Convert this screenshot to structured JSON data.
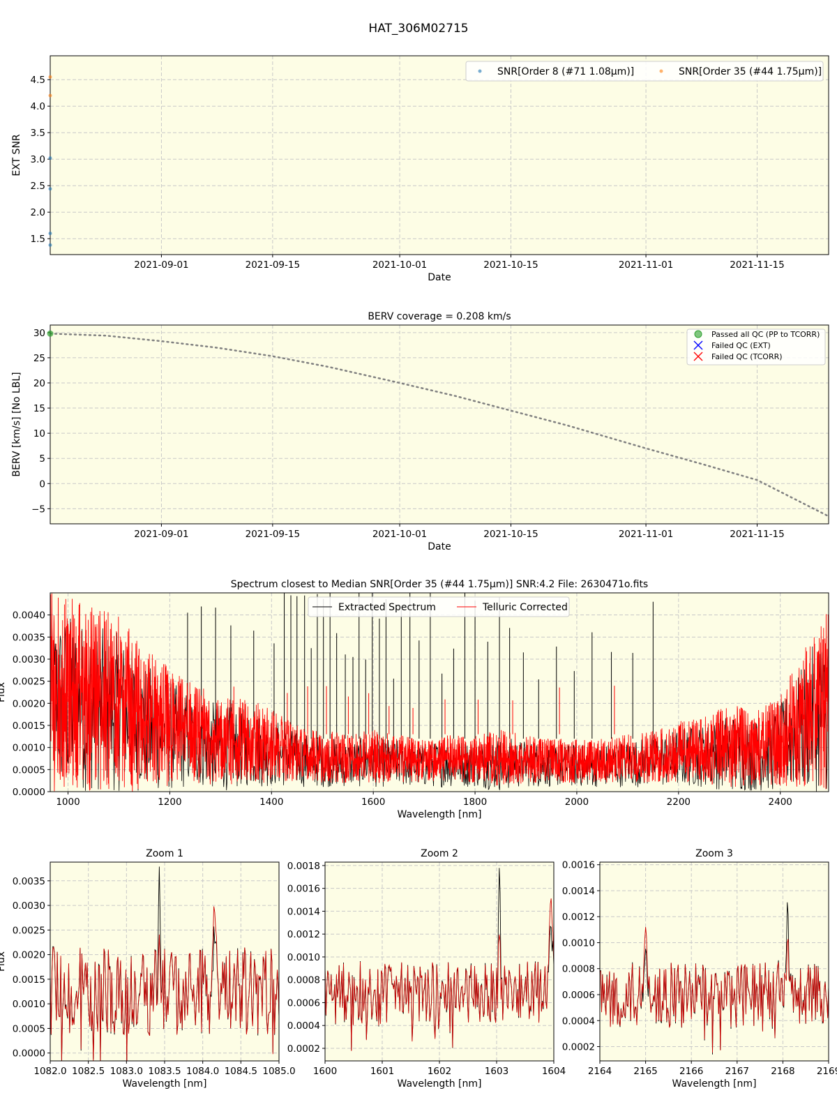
{
  "figure_title": "HAT_306M02715",
  "chart_data": [
    {
      "id": "snr",
      "type": "scatter",
      "title": "",
      "xlabel": "Date",
      "ylabel": "EXT SNR",
      "x_is_date": true,
      "xlim": [
        "2021-08-18",
        "2021-11-24"
      ],
      "ylim": [
        1.2,
        4.95
      ],
      "xticks": [
        "2021-09-01",
        "2021-09-15",
        "2021-10-01",
        "2021-10-15",
        "2021-11-01",
        "2021-11-15"
      ],
      "yticks": [
        1.5,
        2.0,
        2.5,
        3.0,
        3.5,
        4.0,
        4.5
      ],
      "ytick_labels": [
        "1.5",
        "2.0",
        "2.5",
        "3.0",
        "3.5",
        "4.0",
        "4.5"
      ],
      "grid": true,
      "legend_position": "top-right",
      "series": [
        {
          "name": "SNR[Order 8 (#71 1.08μm)]",
          "color": "#1f77b4",
          "points": [
            [
              "2021-08-18",
              1.38
            ],
            [
              "2021-08-18",
              1.6
            ],
            [
              "2021-08-18",
              2.44
            ],
            [
              "2021-08-18",
              3.02
            ]
          ]
        },
        {
          "name": "SNR[Order 35 (#44 1.75μm)]",
          "color": "#ff7f0e",
          "points": [
            [
              "2021-08-18",
              4.2
            ],
            [
              "2021-08-18",
              4.55
            ]
          ]
        }
      ]
    },
    {
      "id": "berv",
      "type": "line",
      "title": "BERV coverage = 0.208 km/s",
      "xlabel": "Date",
      "ylabel": "BERV [km/s]  [No LBL]",
      "x_is_date": true,
      "xlim": [
        "2021-08-18",
        "2021-11-24"
      ],
      "ylim": [
        -8,
        31.5
      ],
      "xticks": [
        "2021-09-01",
        "2021-09-15",
        "2021-10-01",
        "2021-10-15",
        "2021-11-01",
        "2021-11-15"
      ],
      "yticks": [
        -5,
        0,
        5,
        10,
        15,
        20,
        25,
        30
      ],
      "ytick_labels": [
        "−5",
        "0",
        "5",
        "10",
        "15",
        "20",
        "25",
        "30"
      ],
      "grid": true,
      "legend_position": "top-right",
      "berv_curve": {
        "color": "#808080",
        "points": [
          [
            "2021-08-18",
            29.8
          ],
          [
            "2021-08-25",
            29.4
          ],
          [
            "2021-09-01",
            28.3
          ],
          [
            "2021-09-08",
            27.0
          ],
          [
            "2021-09-15",
            25.3
          ],
          [
            "2021-09-22",
            23.2
          ],
          [
            "2021-10-01",
            20.0
          ],
          [
            "2021-10-08",
            17.4
          ],
          [
            "2021-10-15",
            14.5
          ],
          [
            "2021-10-22",
            11.6
          ],
          [
            "2021-11-01",
            7.0
          ],
          [
            "2021-11-08",
            3.9
          ],
          [
            "2021-11-15",
            0.7
          ],
          [
            "2021-11-24",
            -6.5
          ]
        ]
      },
      "passed_points": [
        [
          "2021-08-18",
          29.8
        ]
      ],
      "legend": [
        {
          "label": "Passed all QC (PP to TCORR)",
          "marker": "circle",
          "color": "#2ca02c"
        },
        {
          "label": "Failed QC (EXT)",
          "marker": "x",
          "color": "#0000ff"
        },
        {
          "label": "Failed QC (TCORR)",
          "marker": "x",
          "color": "#ff0000"
        }
      ]
    },
    {
      "id": "spectrum",
      "type": "line",
      "title": "Spectrum closest to Median SNR[Order 35 (#44 1.75μm)]     SNR:4.2     File: 2630471o.fits",
      "xlabel": "Wavelength [nm]",
      "ylabel": "Flux",
      "xlim": [
        965,
        2495
      ],
      "ylim": [
        0,
        0.0045
      ],
      "xticks": [
        1000,
        1200,
        1400,
        1600,
        1800,
        2000,
        2200,
        2400
      ],
      "xtick_labels": [
        "1000",
        "1200",
        "1400",
        "1600",
        "1800",
        "2000",
        "2200",
        "2400"
      ],
      "yticks": [
        0,
        0.0005,
        0.001,
        0.0015,
        0.002,
        0.0025,
        0.003,
        0.0035,
        0.004
      ],
      "ytick_labels": [
        "0.0000",
        "0.0005",
        "0.0010",
        "0.0015",
        "0.0020",
        "0.0025",
        "0.0030",
        "0.0035",
        "0.0040"
      ],
      "grid": true,
      "legend_position": "top-center",
      "series": [
        {
          "name": "Extracted Spectrum",
          "color": "#000000"
        },
        {
          "name": "Telluric Corrected",
          "color": "#ff0000"
        }
      ],
      "envelope": {
        "wavelength": [
          965,
          1000,
          1050,
          1100,
          1150,
          1200,
          1250,
          1300,
          1350,
          1400,
          1450,
          1500,
          1550,
          1600,
          1650,
          1700,
          1750,
          1800,
          1850,
          1900,
          1950,
          2000,
          2050,
          2100,
          2150,
          2200,
          2250,
          2300,
          2350,
          2400,
          2450,
          2495
        ],
        "telluric_max": [
          0.0045,
          0.0045,
          0.0042,
          0.004,
          0.0033,
          0.0028,
          0.0024,
          0.0022,
          0.0021,
          0.0019,
          0.0015,
          0.0014,
          0.0013,
          0.0014,
          0.0013,
          0.0012,
          0.0013,
          0.0013,
          0.0014,
          0.0013,
          0.0012,
          0.0012,
          0.0012,
          0.0013,
          0.0014,
          0.0016,
          0.0017,
          0.002,
          0.0018,
          0.0022,
          0.0033,
          0.0045
        ],
        "telluric_min": [
          0,
          0,
          0,
          0,
          0,
          0.0001,
          0.0002,
          0.0001,
          0.0002,
          0.0002,
          0.0002,
          0.0002,
          0.0002,
          0.0002,
          0.0002,
          0.0002,
          0.0002,
          0.0002,
          0.0001,
          0.0002,
          0.0002,
          0.0002,
          0.0002,
          0.0002,
          0.0002,
          0.0002,
          0.0002,
          0.0001,
          0.0001,
          0.0001,
          0,
          0
        ]
      },
      "extracted_spikes": [
        1235,
        1262,
        1290,
        1320,
        1365,
        1405,
        1425,
        1438,
        1450,
        1465,
        1478,
        1490,
        1502,
        1515,
        1528,
        1545,
        1560,
        1572,
        1585,
        1598,
        1612,
        1625,
        1640,
        1655,
        1672,
        1690,
        1712,
        1735,
        1758,
        1780,
        1800,
        1825,
        1848,
        1868,
        1895,
        1925,
        1960,
        1995,
        2030,
        2068,
        2110,
        2150
      ]
    },
    {
      "id": "zoom1",
      "type": "line",
      "title": "Zoom 1",
      "xlabel": "Wavelength [nm]",
      "ylabel": "Flux",
      "xlim": [
        1082.0,
        1085.0
      ],
      "ylim": [
        -0.00016,
        0.00388
      ],
      "xticks": [
        1082.0,
        1082.5,
        1083.0,
        1083.5,
        1084.0,
        1084.5,
        1085.0
      ],
      "xtick_labels": [
        "1082.0",
        "1082.5",
        "1083.0",
        "1083.5",
        "1084.0",
        "1084.5",
        "1085.0"
      ],
      "yticks": [
        0,
        0.0005,
        0.001,
        0.0015,
        0.002,
        0.0025,
        0.003,
        0.0035
      ],
      "ytick_labels": [
        "0.0000",
        "0.0005",
        "0.0010",
        "0.0015",
        "0.0020",
        "0.0025",
        "0.0030",
        "0.0035"
      ],
      "grid": true,
      "series": [
        {
          "name": "Extracted Spectrum",
          "color": "#000000"
        },
        {
          "name": "Telluric Corrected",
          "color": "#cc0000"
        }
      ],
      "profile": {
        "mean": 0.00125,
        "amplitude": 0.0009,
        "peak_x": 1083.43,
        "peak_y": 0.0038,
        "edge_bump_x": 1084.15,
        "edge_bump_y": 0.003
      }
    },
    {
      "id": "zoom2",
      "type": "line",
      "title": "Zoom 2",
      "xlabel": "Wavelength [nm]",
      "ylabel": "",
      "xlim": [
        1600,
        1604
      ],
      "ylim": [
        9e-05,
        0.00183
      ],
      "xticks": [
        1600,
        1601,
        1602,
        1603,
        1604
      ],
      "xtick_labels": [
        "1600",
        "1601",
        "1602",
        "1603",
        "1604"
      ],
      "yticks": [
        0.0002,
        0.0004,
        0.0006,
        0.0008,
        0.001,
        0.0012,
        0.0014,
        0.0016,
        0.0018
      ],
      "ytick_labels": [
        "0.0002",
        "0.0004",
        "0.0006",
        "0.0008",
        "0.0010",
        "0.0012",
        "0.0014",
        "0.0016",
        "0.0018"
      ],
      "grid": true,
      "series": [
        {
          "name": "Extracted Spectrum",
          "color": "#000000"
        },
        {
          "name": "Telluric Corrected",
          "color": "#cc0000"
        }
      ],
      "profile": {
        "mean": 0.00068,
        "amplitude": 0.00028,
        "peak_x": 1603.05,
        "peak_y": 0.00183,
        "edge_bump_x": 1603.95,
        "edge_bump_y": 0.00152
      }
    },
    {
      "id": "zoom3",
      "type": "line",
      "title": "Zoom 3",
      "xlabel": "Wavelength [nm]",
      "ylabel": "",
      "xlim": [
        2164,
        2169
      ],
      "ylim": [
        9e-05,
        0.00162
      ],
      "xticks": [
        2164,
        2165,
        2166,
        2167,
        2168,
        2169
      ],
      "xtick_labels": [
        "2164",
        "2165",
        "2166",
        "2167",
        "2168",
        "2169"
      ],
      "yticks": [
        0.0002,
        0.0004,
        0.0006,
        0.0008,
        0.001,
        0.0012,
        0.0014,
        0.0016
      ],
      "ytick_labels": [
        "0.0002",
        "0.0004",
        "0.0006",
        "0.0008",
        "0.0010",
        "0.0012",
        "0.0014",
        "0.0016"
      ],
      "grid": true,
      "series": [
        {
          "name": "Extracted Spectrum",
          "color": "#000000"
        },
        {
          "name": "Telluric Corrected",
          "color": "#cc0000"
        }
      ],
      "profile": {
        "mean": 0.0006,
        "amplitude": 0.00025,
        "peak_x": 2168.1,
        "peak_y": 0.00133,
        "edge_bump_x": 2165.0,
        "edge_bump_y": 0.00112
      }
    }
  ]
}
